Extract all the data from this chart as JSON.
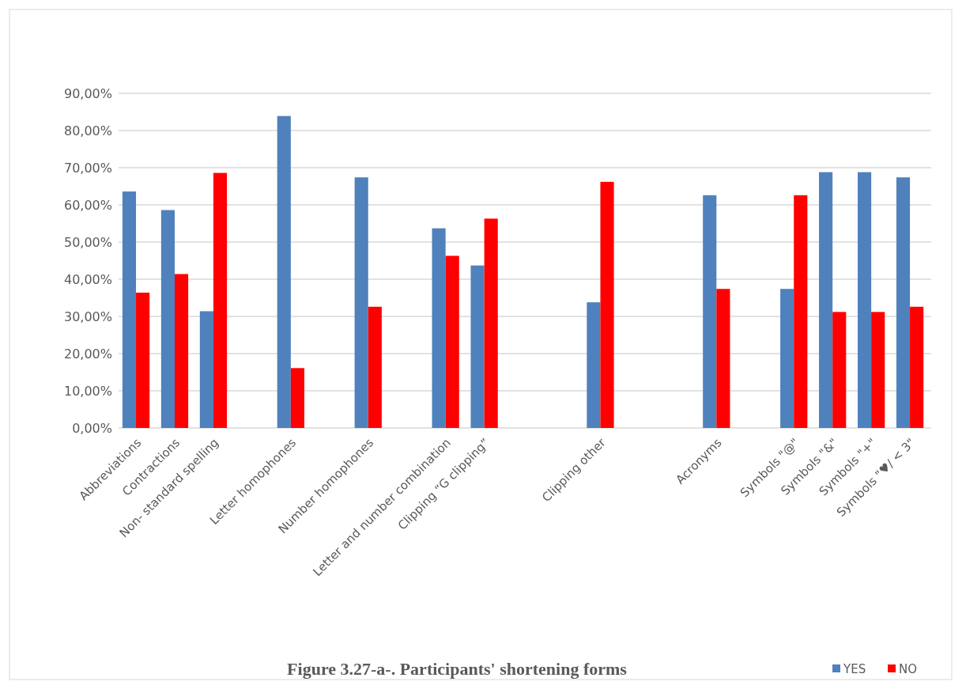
{
  "chart_data": {
    "type": "bar",
    "title": "Figure 3.27-a-. Participants' shortening forms",
    "categories": [
      "Abbreviations",
      "Contractions",
      "Non- standard spelling",
      null,
      "Letter homophones",
      null,
      "Number homophones",
      null,
      "Letter and number combination",
      "Clipping “G clipping”",
      null,
      null,
      "Clipping other",
      null,
      null,
      "Acronyms",
      null,
      "Symbols \"@\"",
      "Symbols \"&\"",
      "Symbols \"+\"",
      "Symbols \"♥/ < 3\""
    ],
    "series": [
      {
        "name": "YES",
        "color": "#4f81bd",
        "values": [
          63.6,
          58.6,
          31.4,
          null,
          83.9,
          null,
          67.4,
          null,
          53.7,
          43.7,
          null,
          null,
          33.8,
          null,
          null,
          62.6,
          null,
          37.4,
          68.8,
          68.8,
          67.4
        ]
      },
      {
        "name": "NO",
        "color": "#ff0000",
        "values": [
          36.4,
          41.4,
          68.6,
          null,
          16.1,
          null,
          32.6,
          null,
          46.3,
          56.3,
          null,
          null,
          66.2,
          null,
          null,
          37.4,
          null,
          62.6,
          31.2,
          31.2,
          32.6
        ]
      }
    ],
    "ylim": [
      0,
      90
    ],
    "yticks": [
      {
        "value": 0,
        "label": "0,00%"
      },
      {
        "value": 10,
        "label": "10,00%"
      },
      {
        "value": 20,
        "label": "20,00%"
      },
      {
        "value": 30,
        "label": "30,00%"
      },
      {
        "value": 40,
        "label": "40,00%"
      },
      {
        "value": 50,
        "label": "50,00%"
      },
      {
        "value": 60,
        "label": "60,00%"
      },
      {
        "value": 70,
        "label": "70,00%"
      },
      {
        "value": 80,
        "label": "80,00%"
      },
      {
        "value": 90,
        "label": "90,00%"
      }
    ],
    "grid": "y",
    "legend": "bottom right"
  }
}
